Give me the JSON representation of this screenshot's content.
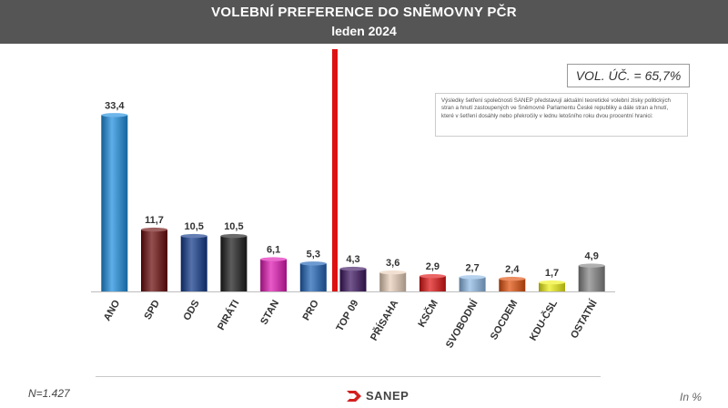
{
  "header": {
    "title": "VOLEBNÍ PREFERENCE DO SNĚMOVNY PČR",
    "subtitle": "leden 2024"
  },
  "vol_label": "VOL. ÚČ. = 65,7%",
  "note": "Výsledky šetření společnosti SANEP představují aktuální teoretické volební zisky politických stran a hnutí zastoupených ve Sněmovně Parlamentu České republiky a dále stran a hnutí, které v šetření dosáhly nebo překročily v lednu letošního roku dvou procentní hranici:",
  "sample_label": "N=1.427",
  "logo_text": "SANEP",
  "unit_label": "In %",
  "chart_data": {
    "type": "bar",
    "title": "VOLEBNÍ PREFERENCE DO SNĚMOVNY PČR",
    "subtitle": "leden 2024",
    "categories": [
      "ANO",
      "SPD",
      "ODS",
      "PIRÁTI",
      "STAN",
      "PRO",
      "TOP 09",
      "PŘÍSAHA",
      "KSČM",
      "SVOBODNÍ",
      "SOCDEM",
      "KDU-ČSL",
      "OSTATNÍ"
    ],
    "values": [
      33.4,
      11.7,
      10.5,
      10.5,
      6.1,
      5.3,
      4.3,
      3.6,
      2.9,
      2.7,
      2.4,
      1.7,
      4.9
    ],
    "value_labels": [
      "33,4",
      "11,7",
      "10,5",
      "10,5",
      "6,1",
      "5,3",
      "4,3",
      "3,6",
      "2,9",
      "2,7",
      "2,4",
      "1,7",
      "4,9"
    ],
    "colors": [
      "#1e8fe0",
      "#6b0a0a",
      "#123a8c",
      "#1c1c1c",
      "#e01ab4",
      "#1f63b6",
      "#3c1560",
      "#e9cfb9",
      "#e01414",
      "#8fb9e6",
      "#e2510e",
      "#eef016",
      "#858585"
    ],
    "ylim": [
      0,
      35
    ],
    "grid": false,
    "legend": "none",
    "unit": "In %"
  }
}
